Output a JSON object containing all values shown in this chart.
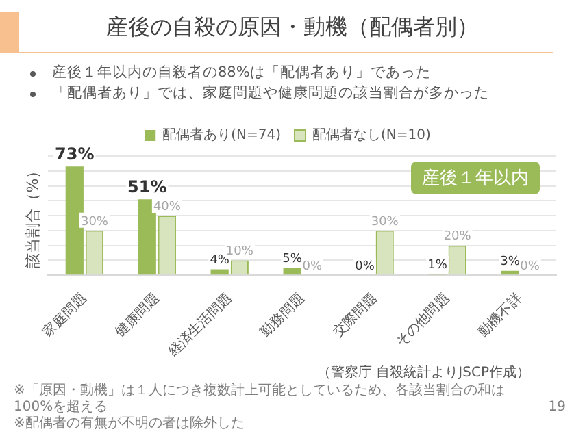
{
  "chart_data": {
    "type": "bar",
    "title": "産後の自殺の原因・動機（配偶者別）",
    "ylabel": "該当割合（%）",
    "categories": [
      "家庭問題",
      "健康問題",
      "経済生活問題",
      "勤務問題",
      "交際問題",
      "その他問題",
      "動機不詳"
    ],
    "series": [
      {
        "name": "配偶者あり(N=74)",
        "color": "#9bbb59",
        "values": [
          73,
          51,
          4,
          5,
          0,
          1,
          3
        ],
        "value_labels": [
          "73%",
          "51%",
          "4%",
          "5%",
          "0%",
          "1%",
          "3%"
        ]
      },
      {
        "name": "配偶者なし(N=10)",
        "color": "#d7e4bd",
        "values": [
          30,
          40,
          10,
          0,
          30,
          20,
          0
        ],
        "value_labels": [
          "30%",
          "40%",
          "10%",
          "0%",
          "30%",
          "20%",
          "0%"
        ]
      }
    ],
    "ylim": [
      0,
      80
    ],
    "yticks": [
      {
        "value": 0,
        "label": null
      },
      {
        "value": 10,
        "label": null
      },
      {
        "value": 20,
        "label": null
      },
      {
        "value": 30,
        "label": null
      },
      {
        "value": 40,
        "label": null
      },
      {
        "value": 50,
        "label": null
      },
      {
        "value": 60,
        "label": null
      },
      {
        "value": 70,
        "label": null
      },
      {
        "value": 80,
        "label": null
      }
    ],
    "tick_labels": "x",
    "grid": "y",
    "legend": "top",
    "annotations": [
      "産後１年以内の自殺者の88%は「配偶者あり」であった",
      "「配偶者あり」では、家庭問題や健康問題の該当割合が多かった",
      "産後１年以内",
      "（警察庁 自殺統計よりJSCP作成）",
      "※「原因・動機」は１人につき複数計上可能としているため、各該当割合の和は100%を超える",
      "※配偶者の有無が不明の者は除外した",
      "19"
    ]
  }
}
